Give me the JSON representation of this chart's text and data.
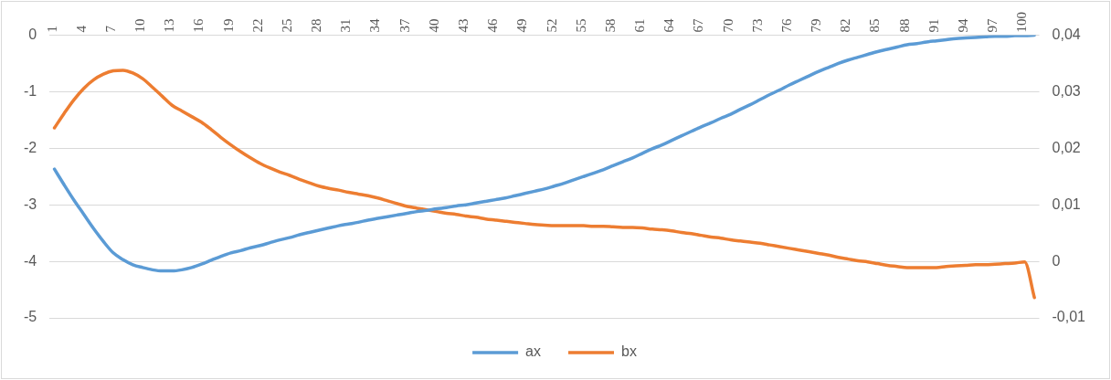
{
  "chart_data": {
    "type": "line",
    "categories": [
      "1",
      null,
      null,
      "4",
      null,
      null,
      "7",
      null,
      null,
      "10",
      null,
      null,
      "13",
      null,
      null,
      "16",
      null,
      null,
      "19",
      null,
      null,
      "22",
      null,
      null,
      "25",
      null,
      null,
      "28",
      null,
      null,
      "31",
      null,
      null,
      "34",
      null,
      null,
      "37",
      null,
      null,
      "40",
      null,
      null,
      "43",
      null,
      null,
      "46",
      null,
      null,
      "49",
      null,
      null,
      "52",
      null,
      null,
      "55",
      null,
      null,
      "58",
      null,
      null,
      "61",
      null,
      null,
      "64",
      null,
      null,
      "67",
      null,
      null,
      "70",
      null,
      null,
      "73",
      null,
      null,
      "76",
      null,
      null,
      "79",
      null,
      null,
      "82",
      null,
      null,
      "85",
      null,
      null,
      "88",
      null,
      null,
      "91",
      null,
      null,
      "94",
      null,
      null,
      "97",
      null,
      null,
      "100",
      null
    ],
    "series": [
      {
        "name": "ax",
        "color": "#5b9bd5",
        "values": [
          -2.37,
          -2.65,
          -2.92,
          -3.17,
          -3.42,
          -3.65,
          -3.85,
          -3.97,
          -4.06,
          -4.11,
          -4.15,
          -4.17,
          -4.17,
          -4.15,
          -4.11,
          -4.05,
          -3.98,
          -3.91,
          -3.85,
          -3.81,
          -3.76,
          -3.72,
          -3.67,
          -3.62,
          -3.58,
          -3.53,
          -3.49,
          -3.45,
          -3.41,
          -3.37,
          -3.34,
          -3.31,
          -3.27,
          -3.24,
          -3.21,
          -3.18,
          -3.15,
          -3.12,
          -3.1,
          -3.07,
          -3.05,
          -3.02,
          -3.0,
          -2.97,
          -2.94,
          -2.91,
          -2.88,
          -2.84,
          -2.8,
          -2.76,
          -2.72,
          -2.67,
          -2.62,
          -2.56,
          -2.5,
          -2.44,
          -2.38,
          -2.31,
          -2.24,
          -2.17,
          -2.09,
          -2.01,
          -1.94,
          -1.86,
          -1.78,
          -1.7,
          -1.62,
          -1.55,
          -1.47,
          -1.4,
          -1.31,
          -1.23,
          -1.14,
          -1.05,
          -0.97,
          -0.88,
          -0.8,
          -0.72,
          -0.64,
          -0.57,
          -0.5,
          -0.44,
          -0.39,
          -0.34,
          -0.29,
          -0.25,
          -0.21,
          -0.17,
          -0.15,
          -0.12,
          -0.1,
          -0.08,
          -0.06,
          -0.05,
          -0.04,
          -0.03,
          -0.02,
          -0.02,
          -0.01,
          -0.01,
          0
        ]
      },
      {
        "name": "bx",
        "color": "#ed7d31",
        "axis": "y2",
        "values": [
          0.0236,
          0.0262,
          0.0286,
          0.0306,
          0.0321,
          0.0331,
          0.0337,
          0.0338,
          0.0333,
          0.0323,
          0.0308,
          0.0292,
          0.0276,
          0.0266,
          0.0256,
          0.0246,
          0.0233,
          0.0219,
          0.0206,
          0.0194,
          0.0183,
          0.0173,
          0.0165,
          0.0158,
          0.0152,
          0.0145,
          0.0139,
          0.0133,
          0.0129,
          0.0126,
          0.0122,
          0.0119,
          0.0116,
          0.0112,
          0.0107,
          0.0102,
          0.0097,
          0.0094,
          0.0091,
          0.0088,
          0.0085,
          0.0083,
          0.008,
          0.0078,
          0.0075,
          0.0073,
          0.0071,
          0.0069,
          0.0067,
          0.0065,
          0.0064,
          0.0063,
          0.0063,
          0.0063,
          0.0063,
          0.0062,
          0.0062,
          0.0061,
          0.006,
          0.006,
          0.0059,
          0.0057,
          0.0056,
          0.0054,
          0.0051,
          0.0049,
          0.0046,
          0.0043,
          0.0041,
          0.0038,
          0.0036,
          0.0034,
          0.0032,
          0.0029,
          0.0026,
          0.0023,
          0.002,
          0.0017,
          0.0014,
          0.0011,
          0.0007,
          0.0004,
          0.0001,
          -0.0001,
          -0.0004,
          -0.0007,
          -0.0009,
          -0.0011,
          -0.0011,
          -0.0011,
          -0.0011,
          -0.0009,
          -0.0008,
          -0.0007,
          -0.0006,
          -0.0006,
          -0.0005,
          -0.0004,
          -0.0003,
          -0.0001,
          -0.0064
        ]
      }
    ],
    "ylim": [
      -5,
      0
    ],
    "yticks": [
      -5,
      -4,
      -3,
      -2,
      -1,
      0
    ],
    "y2lim": [
      -0.01,
      0.04
    ],
    "y2ticks": [
      {
        "value": -0.01,
        "label": "-0,01"
      },
      0,
      {
        "value": 0.01,
        "label": "0,01"
      },
      {
        "value": 0.02,
        "label": "0,02"
      },
      {
        "value": 0.03,
        "label": "0,03"
      },
      {
        "value": 0.04,
        "label": "0,04"
      }
    ],
    "grid": "y",
    "legend": "bottom",
    "marker": "none",
    "line_style": "solid"
  }
}
